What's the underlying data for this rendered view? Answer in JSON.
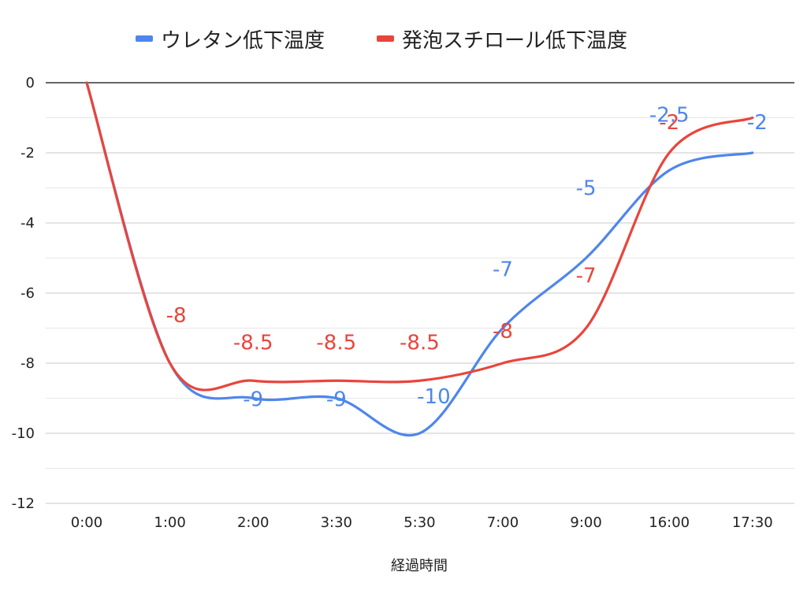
{
  "chart_data": {
    "type": "line",
    "title": "",
    "xlabel": "経過時間",
    "ylabel": "",
    "categories": [
      "0:00",
      "1:00",
      "2:00",
      "3:30",
      "5:30",
      "7:00",
      "9:00",
      "16:00",
      "17:30"
    ],
    "ylim": [
      -12,
      0
    ],
    "yticks": [
      0,
      -2,
      -4,
      -6,
      -8,
      -10,
      -12
    ],
    "grid": true,
    "smooth": true,
    "legend_position": "top",
    "series": [
      {
        "name": "ウレタン低下温度",
        "color": "#4f86ec",
        "values": [
          0,
          -8,
          -9,
          -9,
          -10,
          -7,
          -5,
          -2.5,
          -2
        ],
        "labels": [
          "",
          "",
          "-9",
          "-9",
          "-10",
          "-7",
          "-5",
          "-2.5",
          "-2"
        ]
      },
      {
        "name": "発泡スチロール低下温度",
        "color": "#e8453c",
        "values": [
          0,
          -8,
          -8.5,
          -8.5,
          -8.5,
          -8,
          -7,
          -2,
          -1
        ],
        "labels": [
          "",
          "-8",
          "-8.5",
          "-8.5",
          "-8.5",
          "-8",
          "-7",
          "-2",
          ""
        ]
      }
    ]
  }
}
